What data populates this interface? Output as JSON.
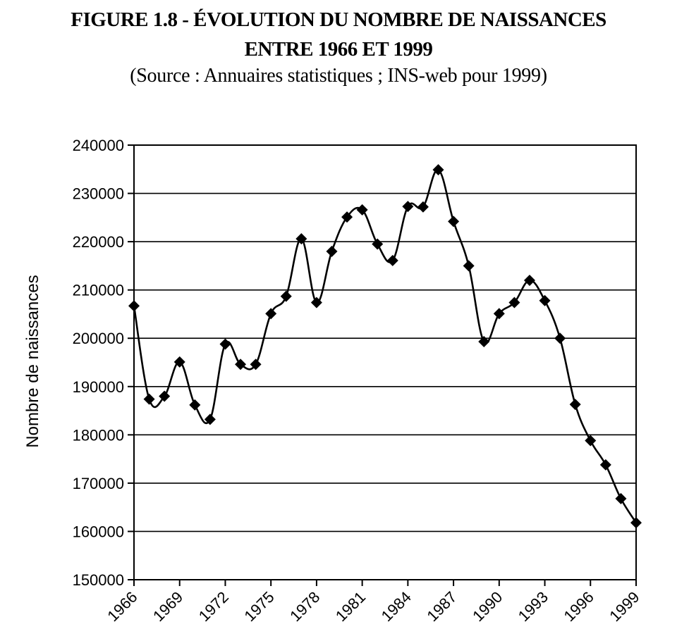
{
  "titles": {
    "line1": "FIGURE 1.8 - ÉVOLUTION DU NOMBRE DE NAISSANCES",
    "line2": "ENTRE 1966 ET 1999",
    "line3": "(Source : Annuaires statistiques ; INS-web pour 1999)"
  },
  "chart_data": {
    "type": "line",
    "title": "FIGURE 1.8 - ÉVOLUTION DU NOMBRE DE NAISSANCES ENTRE 1966 ET 1999",
    "subtitle": "(Source : Annuaires statistiques ; INS-web pour 1999)",
    "ylabel": "Nombre de naissances",
    "xlabel": "",
    "ylim": [
      150000,
      240000
    ],
    "yticks": [
      150000,
      160000,
      170000,
      180000,
      190000,
      200000,
      210000,
      220000,
      230000,
      240000
    ],
    "xlim": [
      1966,
      1999
    ],
    "xtick_labels": [
      "1966",
      "1969",
      "1972",
      "1975",
      "1978",
      "1981",
      "1984",
      "1987",
      "1990",
      "1993",
      "1996",
      "1999"
    ],
    "grid": "horizontal",
    "line_color": "#000000",
    "marker": "diamond",
    "x": [
      1966,
      1967,
      1968,
      1969,
      1970,
      1971,
      1972,
      1973,
      1974,
      1975,
      1976,
      1977,
      1978,
      1979,
      1980,
      1981,
      1982,
      1983,
      1984,
      1985,
      1986,
      1987,
      1988,
      1989,
      1990,
      1991,
      1992,
      1993,
      1994,
      1995,
      1996,
      1997,
      1998,
      1999
    ],
    "values": [
      206700,
      187400,
      188000,
      195100,
      186200,
      183200,
      198800,
      194600,
      194600,
      205100,
      208700,
      220600,
      207400,
      218000,
      225100,
      226600,
      219500,
      216100,
      227300,
      227200,
      234900,
      224200,
      215000,
      199300,
      205100,
      207400,
      212000,
      207800,
      200000,
      186300,
      178800,
      173800,
      166800,
      161800
    ]
  }
}
